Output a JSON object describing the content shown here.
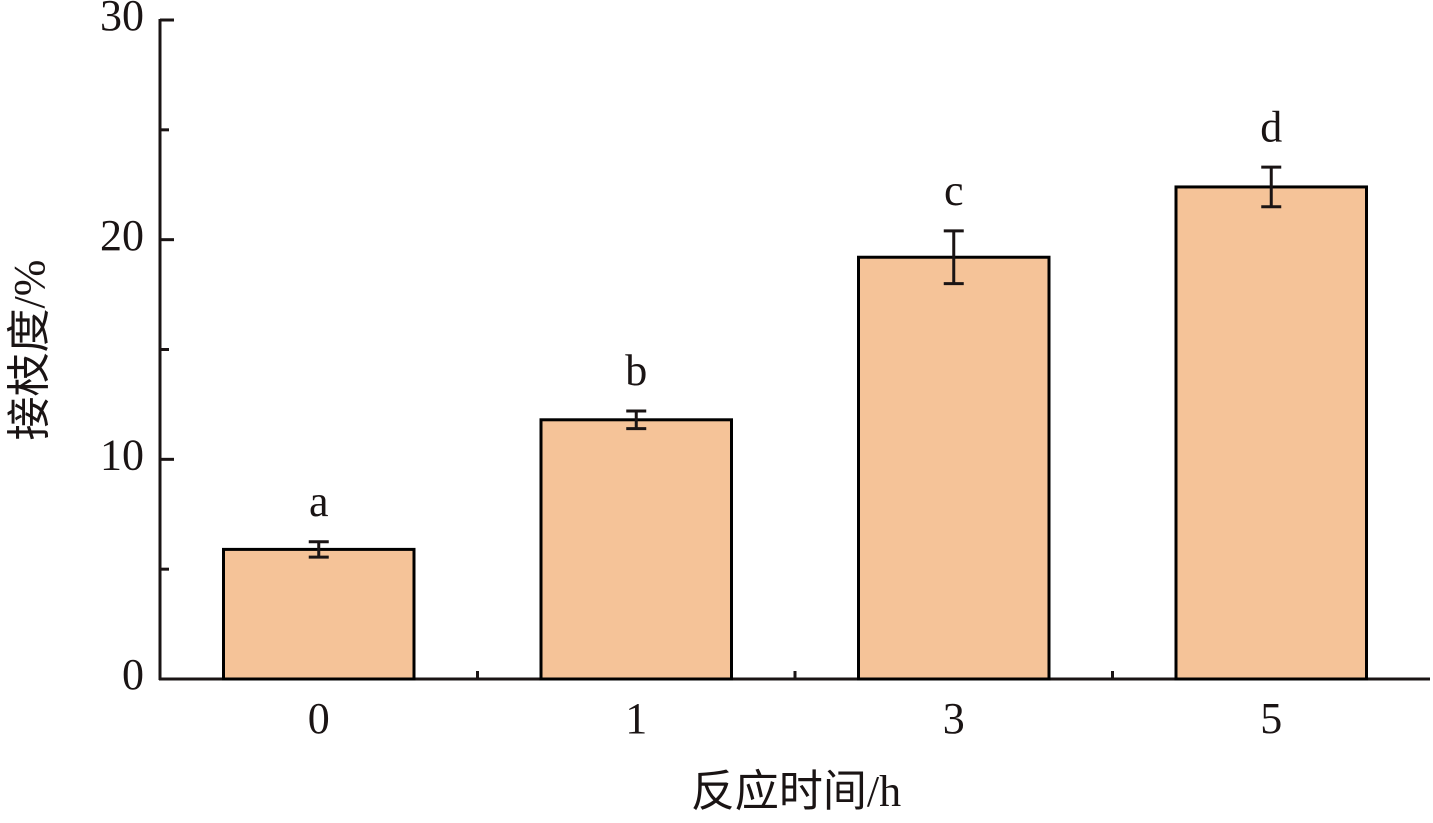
{
  "chart_data": {
    "type": "bar",
    "x_label": "反应时间/h",
    "y_label": "接枝度/%",
    "categories": [
      "0",
      "1",
      "3",
      "5"
    ],
    "values": [
      5.9,
      11.8,
      19.2,
      22.4
    ],
    "errors": [
      0.35,
      0.4,
      1.2,
      0.9
    ],
    "annotations": [
      "a",
      "b",
      "c",
      "d"
    ],
    "color": "#f5c398",
    "edge_color": "#000000",
    "ylim": [
      0,
      30
    ],
    "yticks": [
      0,
      10,
      20,
      30
    ],
    "yminorticks": [
      5,
      15,
      25
    ],
    "grid": false
  }
}
